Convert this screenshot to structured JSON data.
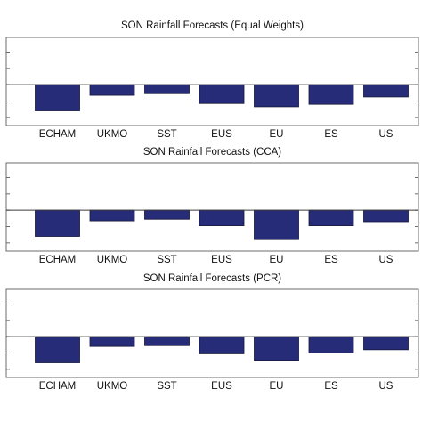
{
  "chart_data": [
    {
      "type": "bar",
      "title": "SON Rainfall Forecasts (Equal Weights)",
      "categories": [
        "ECHAM",
        "UKMO",
        "SST",
        "EUS",
        "EU",
        "ES",
        "US"
      ],
      "values": [
        -1.6,
        -0.65,
        -0.55,
        -1.15,
        -1.35,
        -1.2,
        -0.75
      ],
      "ylim": [
        -2.5,
        2.9
      ],
      "yticks": [
        -2,
        -1,
        0,
        1,
        2
      ],
      "bar_color": "#262c78",
      "grid": false,
      "legend": "none"
    },
    {
      "type": "bar",
      "title": "SON Rainfall Forecasts (CCA)",
      "categories": [
        "ECHAM",
        "UKMO",
        "SST",
        "EUS",
        "EU",
        "ES",
        "US"
      ],
      "values": [
        -1.6,
        -0.65,
        -0.55,
        -0.95,
        -1.8,
        -0.95,
        -0.7
      ],
      "ylim": [
        -2.5,
        2.9
      ],
      "yticks": [
        -2,
        -1,
        0,
        1,
        2
      ],
      "bar_color": "#262c78",
      "grid": false,
      "legend": "none"
    },
    {
      "type": "bar",
      "title": "SON Rainfall Forecasts (PCR)",
      "categories": [
        "ECHAM",
        "UKMO",
        "SST",
        "EUS",
        "EU",
        "ES",
        "US"
      ],
      "values": [
        -1.6,
        -0.6,
        -0.55,
        -1.05,
        -1.45,
        -1.0,
        -0.8
      ],
      "ylim": [
        -2.5,
        2.9
      ],
      "yticks": [
        -2,
        -1,
        0,
        1,
        2
      ],
      "bar_color": "#262c78",
      "grid": false,
      "legend": "none"
    }
  ]
}
